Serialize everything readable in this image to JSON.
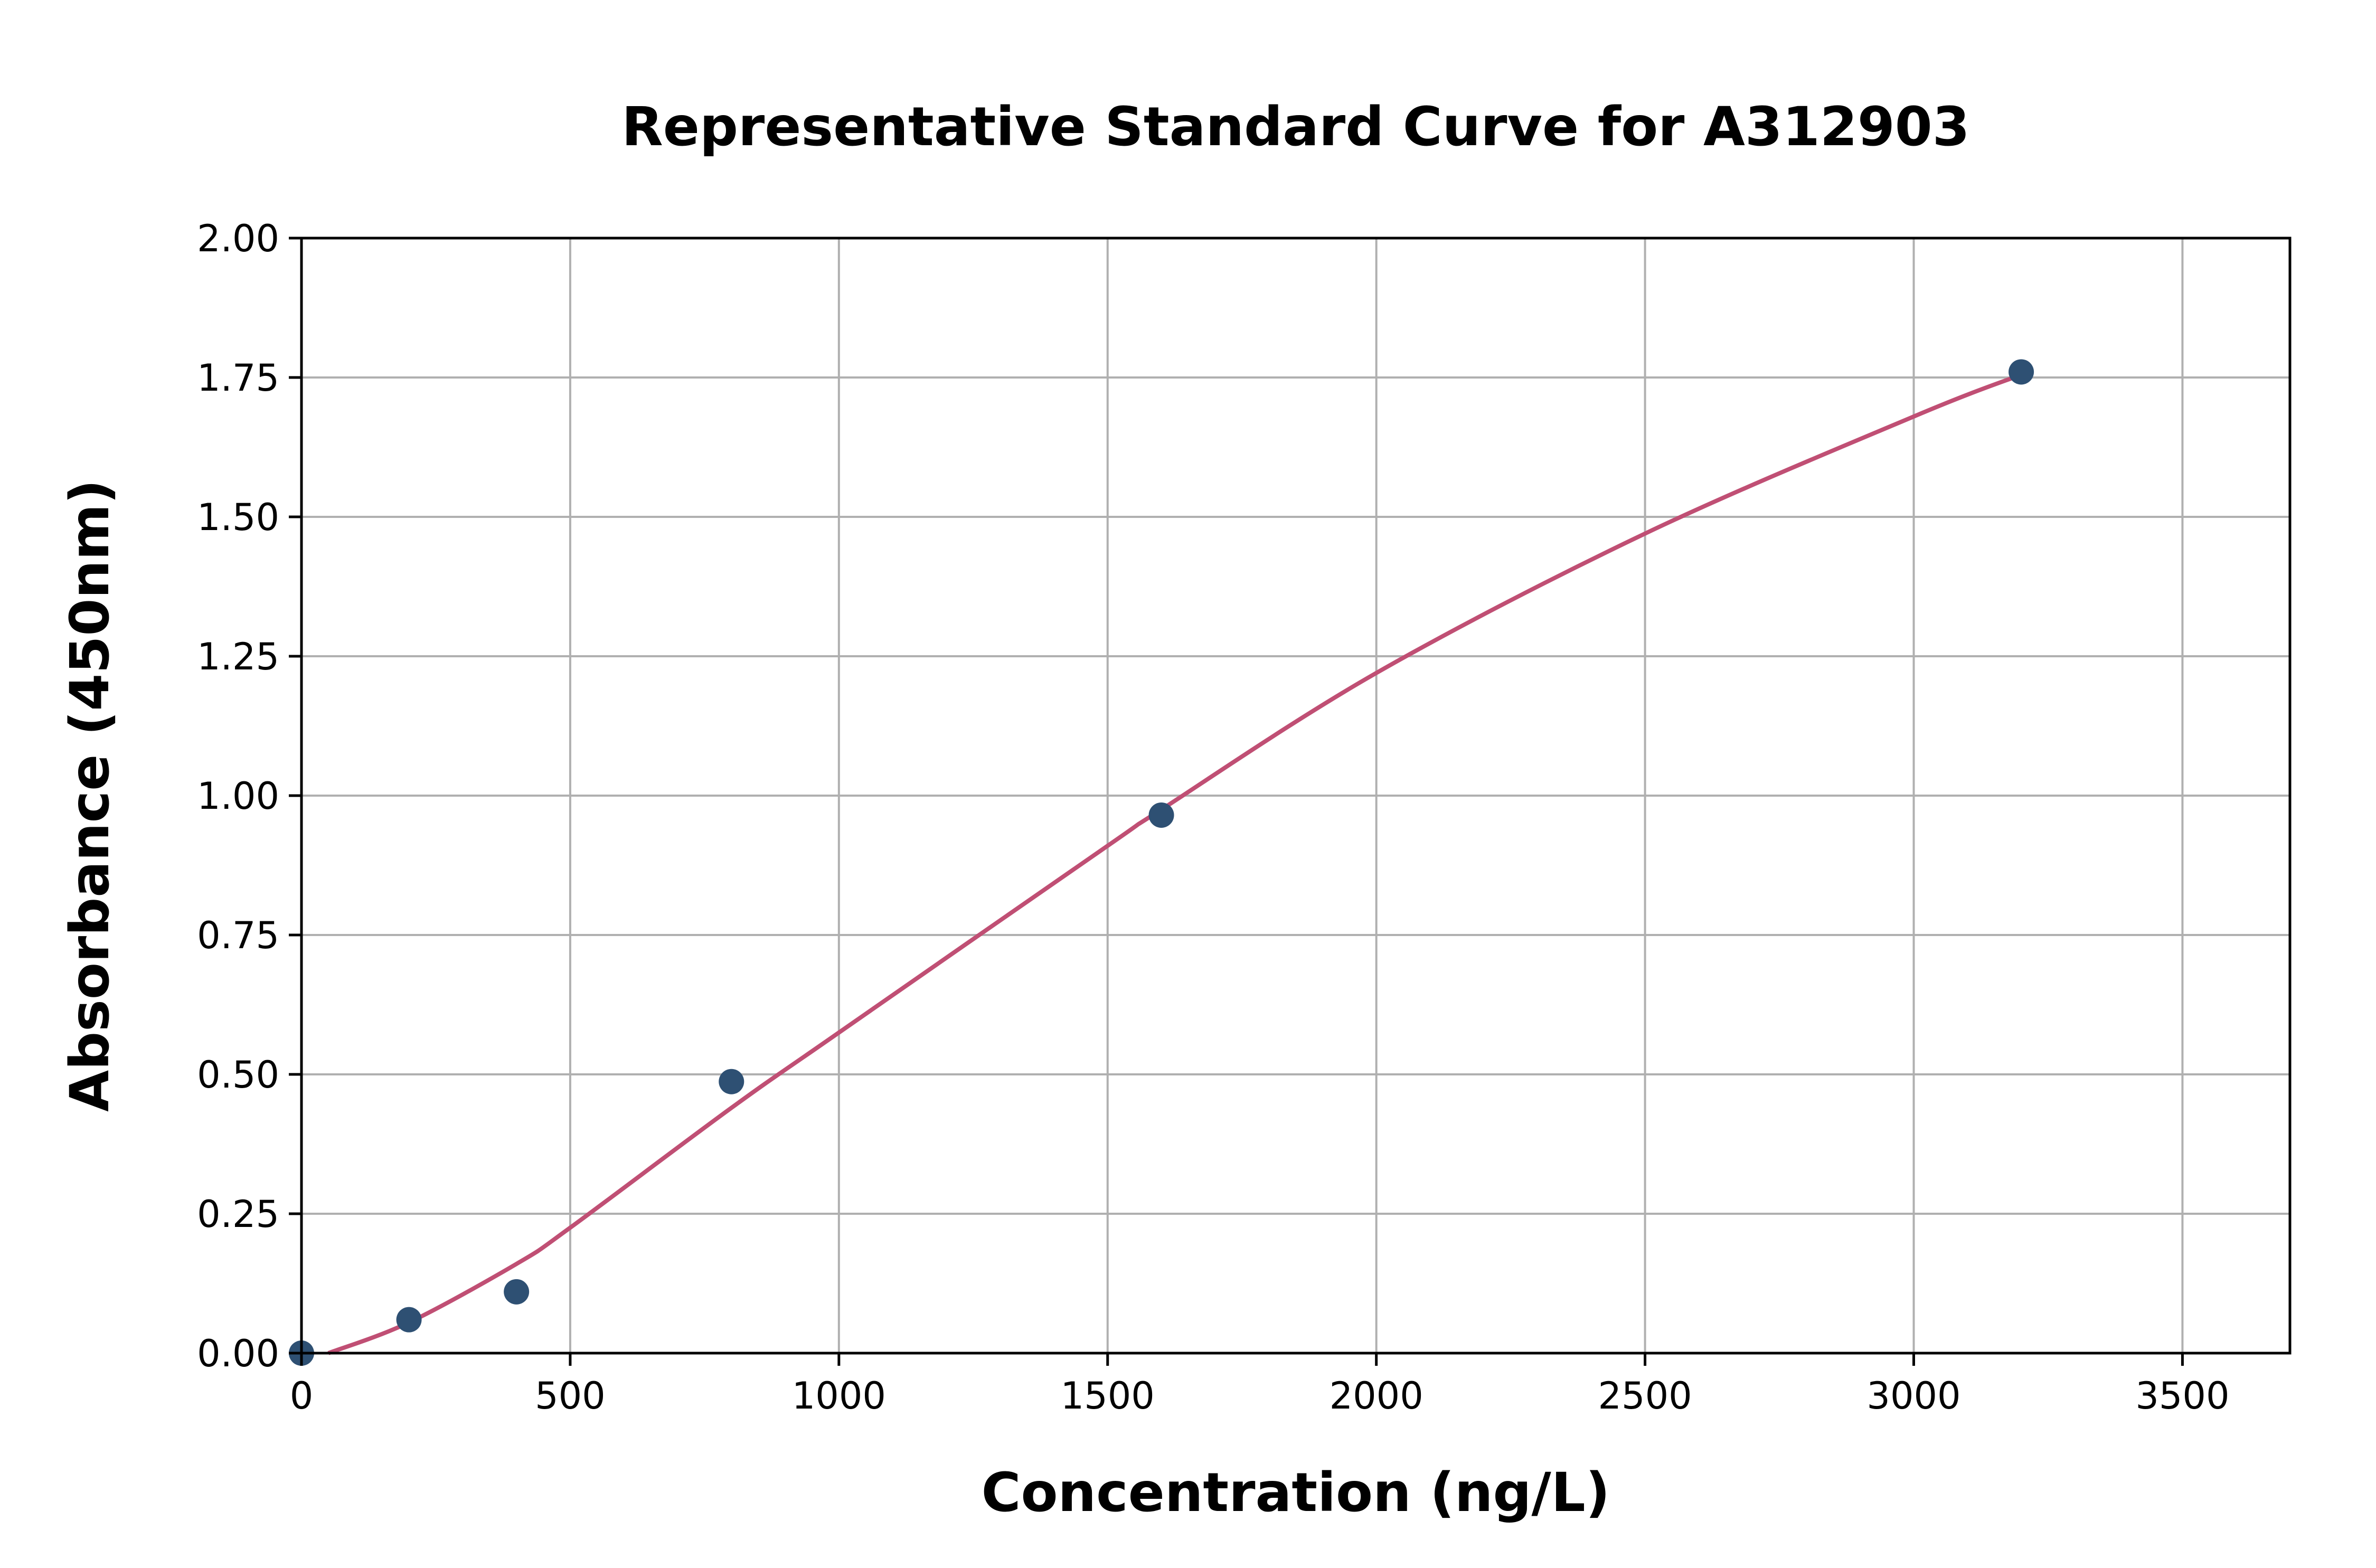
{
  "chart_data": {
    "type": "scatter",
    "title": "Representative Standard Curve for A312903",
    "xlabel": "Concentration (ng/L)",
    "ylabel": "Absorbance (450nm)",
    "xlim": [
      0,
      3700
    ],
    "ylim": [
      0,
      2.0
    ],
    "xticks": [
      0,
      500,
      1000,
      1500,
      2000,
      2500,
      3000,
      3500
    ],
    "yticks": [
      "0.00",
      "0.25",
      "0.50",
      "0.75",
      "1.00",
      "1.25",
      "1.50",
      "1.75",
      "2.00"
    ],
    "grid": true,
    "points": {
      "x": [
        0,
        200,
        400,
        800,
        1600,
        3200
      ],
      "y": [
        0.0,
        0.06,
        0.11,
        0.487,
        0.965,
        1.76
      ],
      "color": "#2e5073"
    },
    "fit_curve": {
      "x": [
        50,
        200,
        400,
        500,
        800,
        1000,
        1500,
        1600,
        2000,
        2500,
        3000,
        3200
      ],
      "y": [
        0.0,
        0.055,
        0.16,
        0.225,
        0.44,
        0.575,
        0.91,
        0.975,
        1.22,
        1.47,
        1.68,
        1.755
      ],
      "color": "#c04f74"
    }
  }
}
